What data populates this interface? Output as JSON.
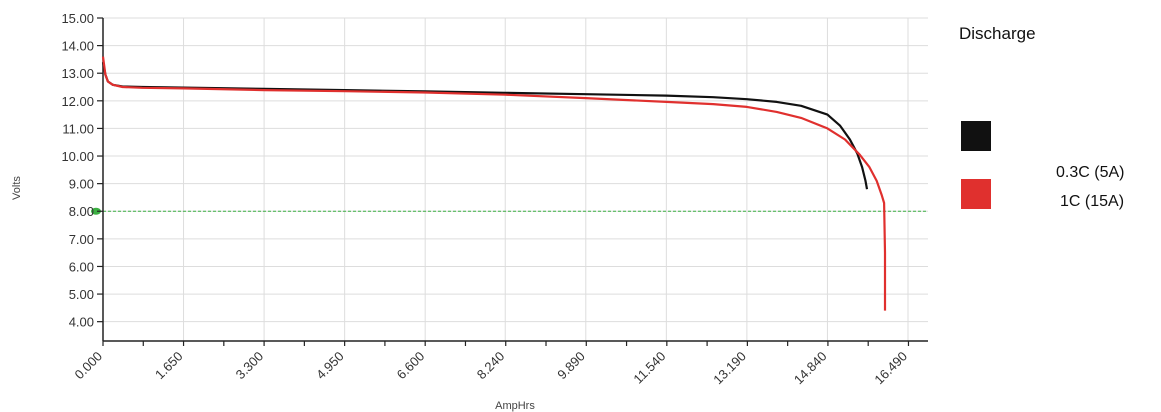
{
  "colors": {
    "series_black": "#111111",
    "series_red": "#e0302e",
    "reference_line": "#3cb043",
    "grid": "#dddddd"
  },
  "chart_data": {
    "type": "line",
    "title": "",
    "xlabel": "AmpHrs",
    "ylabel": "Volts",
    "xlim": [
      0,
      16.9
    ],
    "ylim": [
      3.3,
      15.0
    ],
    "x_ticks": [
      "0.000",
      "1.650",
      "3.300",
      "4.950",
      "6.600",
      "8.240",
      "9.890",
      "11.540",
      "13.190",
      "14.840",
      "16.490"
    ],
    "x_tick_values": [
      0.0,
      1.65,
      3.3,
      4.95,
      6.6,
      8.24,
      9.89,
      11.54,
      13.19,
      14.84,
      16.49
    ],
    "y_ticks": [
      "15.00",
      "14.00",
      "13.00",
      "12.00",
      "11.00",
      "10.00",
      "9.00",
      "8.00",
      "7.00",
      "6.00",
      "5.00",
      "4.00"
    ],
    "y_tick_values": [
      15,
      14,
      13,
      12,
      11,
      10,
      9,
      8,
      7,
      6,
      5,
      4
    ],
    "grid": true,
    "legend_title": "Discharge",
    "legend_position": "right",
    "reference_line": {
      "y": 8.0
    },
    "series": [
      {
        "name": "0.3C (5A)",
        "color": "#111111",
        "x": [
          0.0,
          0.05,
          0.1,
          0.2,
          0.4,
          0.8,
          1.65,
          3.3,
          4.95,
          6.6,
          8.24,
          9.89,
          11.54,
          12.5,
          13.19,
          13.8,
          14.3,
          14.84,
          15.1,
          15.3,
          15.45,
          15.55,
          15.62,
          15.65
        ],
        "y": [
          13.4,
          12.95,
          12.7,
          12.58,
          12.52,
          12.5,
          12.48,
          12.43,
          12.39,
          12.34,
          12.29,
          12.24,
          12.19,
          12.13,
          12.06,
          11.96,
          11.82,
          11.5,
          11.1,
          10.6,
          10.1,
          9.6,
          9.1,
          8.8
        ]
      },
      {
        "name": "1C (15A)",
        "color": "#e0302e",
        "x": [
          0.0,
          0.05,
          0.1,
          0.2,
          0.4,
          0.8,
          1.65,
          3.3,
          4.95,
          6.6,
          8.24,
          9.89,
          11.54,
          12.5,
          13.19,
          13.8,
          14.3,
          14.84,
          15.2,
          15.5,
          15.7,
          15.85,
          15.95,
          16.0,
          16.02,
          16.02
        ],
        "y": [
          13.6,
          12.95,
          12.7,
          12.58,
          12.5,
          12.47,
          12.45,
          12.39,
          12.35,
          12.3,
          12.22,
          12.1,
          11.96,
          11.88,
          11.78,
          11.6,
          11.38,
          11.0,
          10.6,
          10.05,
          9.6,
          9.1,
          8.6,
          8.3,
          6.5,
          4.4
        ]
      }
    ]
  }
}
